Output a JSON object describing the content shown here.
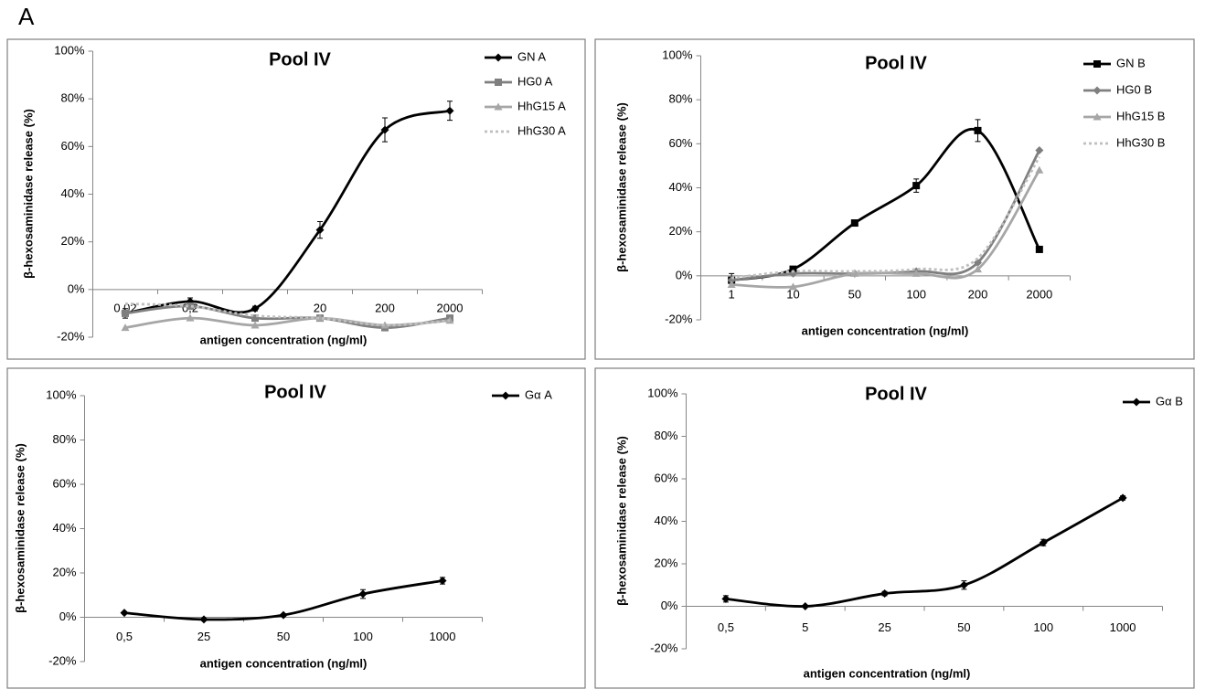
{
  "panel_label": "A",
  "chart_data": [
    {
      "type": "line",
      "title": "Pool IV",
      "x_label": "antigen concentration (ng/ml)",
      "y_label": "β-hexosaminidase release (%)",
      "categories": [
        "0,02",
        "0,2",
        null,
        "20",
        "200",
        "2000"
      ],
      "ylim": [
        -20,
        100
      ],
      "yticks": [
        {
          "value": -20,
          "label": "-20%"
        },
        {
          "value": 0,
          "label": "0%"
        },
        {
          "value": 20,
          "label": "20%"
        },
        {
          "value": 40,
          "label": "40%"
        },
        {
          "value": 60,
          "label": "60%"
        },
        {
          "value": 80,
          "label": "80%"
        },
        {
          "value": 100,
          "label": "100%"
        }
      ],
      "grid": false,
      "series": [
        {
          "name": "GN A",
          "color": "#000000",
          "marker": "diamond",
          "dash": "solid",
          "values": [
            -10,
            -5,
            -8,
            25,
            67,
            75
          ],
          "errors": [
            2,
            1.5,
            1,
            3.5,
            5,
            4
          ]
        },
        {
          "name": "HG0 A",
          "color": "#7f7f7f",
          "marker": "square",
          "dash": "solid",
          "values": [
            -10,
            -7,
            -12,
            -12,
            -16,
            -12
          ]
        },
        {
          "name": "HhG15 A",
          "color": "#a6a6a6",
          "marker": "triangle",
          "dash": "solid",
          "values": [
            -16,
            -12,
            -15,
            -12,
            -15,
            -13
          ]
        },
        {
          "name": "HhG30 A",
          "color": "#bfbfbf",
          "marker": "none",
          "dash": "dotted",
          "values": [
            -6,
            -7,
            -11,
            -12,
            -15,
            -13
          ]
        }
      ]
    },
    {
      "type": "line",
      "title": "Pool IV",
      "x_label": "antigen concentration (ng/ml)",
      "y_label": "β-hexosaminidase release (%)",
      "categories": [
        "1",
        "10",
        "50",
        "100",
        "200",
        "2000"
      ],
      "ylim": [
        -20,
        100
      ],
      "yticks": [
        {
          "value": -20,
          "label": "-20%"
        },
        {
          "value": 0,
          "label": "0%"
        },
        {
          "value": 20,
          "label": "20%"
        },
        {
          "value": 40,
          "label": "40%"
        },
        {
          "value": 60,
          "label": "60%"
        },
        {
          "value": 80,
          "label": "80%"
        },
        {
          "value": 100,
          "label": "100%"
        }
      ],
      "grid": false,
      "series": [
        {
          "name": "GN B",
          "color": "#000000",
          "marker": "square",
          "dash": "solid",
          "values": [
            -2,
            3,
            24,
            41,
            66,
            12
          ],
          "errors": [
            3,
            1,
            1,
            3,
            5,
            1
          ]
        },
        {
          "name": "HG0 B",
          "color": "#7f7f7f",
          "marker": "diamond",
          "dash": "solid",
          "values": [
            -2,
            1,
            1,
            2,
            6,
            57
          ]
        },
        {
          "name": "HhG15 B",
          "color": "#a6a6a6",
          "marker": "triangle",
          "dash": "solid",
          "values": [
            -4,
            -5,
            1,
            1,
            3,
            48
          ]
        },
        {
          "name": "HhG30 B",
          "color": "#bfbfbf",
          "marker": "none",
          "dash": "dotted",
          "values": [
            -1,
            2,
            2,
            3,
            8,
            54
          ]
        }
      ]
    },
    {
      "type": "line",
      "title": "Pool IV",
      "x_label": "antigen concentration (ng/ml)",
      "y_label": "β-hexosaminidase release (%)",
      "categories": [
        "0,5",
        "25",
        "50",
        "100",
        "1000"
      ],
      "ylim": [
        -20,
        100
      ],
      "yticks": [
        {
          "value": -20,
          "label": "-20%"
        },
        {
          "value": 0,
          "label": "0%"
        },
        {
          "value": 20,
          "label": "20%"
        },
        {
          "value": 40,
          "label": "40%"
        },
        {
          "value": 60,
          "label": "60%"
        },
        {
          "value": 80,
          "label": "80%"
        },
        {
          "value": 100,
          "label": "100%"
        }
      ],
      "grid": false,
      "series": [
        {
          "name": "Gα A",
          "color": "#000000",
          "marker": "diamond",
          "dash": "solid",
          "values": [
            2,
            -1,
            1,
            10.5,
            16.5
          ],
          "errors": [
            0.5,
            0.5,
            0.5,
            2,
            1.5
          ]
        }
      ]
    },
    {
      "type": "line",
      "title": "Pool IV",
      "x_label": "antigen concentration (ng/ml)",
      "y_label": "β-hexosaminidase release (%)",
      "categories": [
        "0,5",
        "5",
        "25",
        "50",
        "100",
        "1000"
      ],
      "ylim": [
        -20,
        100
      ],
      "yticks": [
        {
          "value": -20,
          "label": "-20%"
        },
        {
          "value": 0,
          "label": "0%"
        },
        {
          "value": 20,
          "label": "20%"
        },
        {
          "value": 40,
          "label": "40%"
        },
        {
          "value": 60,
          "label": "60%"
        },
        {
          "value": 80,
          "label": "80%"
        },
        {
          "value": 100,
          "label": "100%"
        }
      ],
      "grid": false,
      "series": [
        {
          "name": "Gα B",
          "color": "#000000",
          "marker": "diamond",
          "dash": "solid",
          "values": [
            3.5,
            0,
            6,
            10,
            30,
            51
          ],
          "errors": [
            1.5,
            0.5,
            1,
            2,
            1.5,
            1
          ]
        }
      ]
    }
  ]
}
